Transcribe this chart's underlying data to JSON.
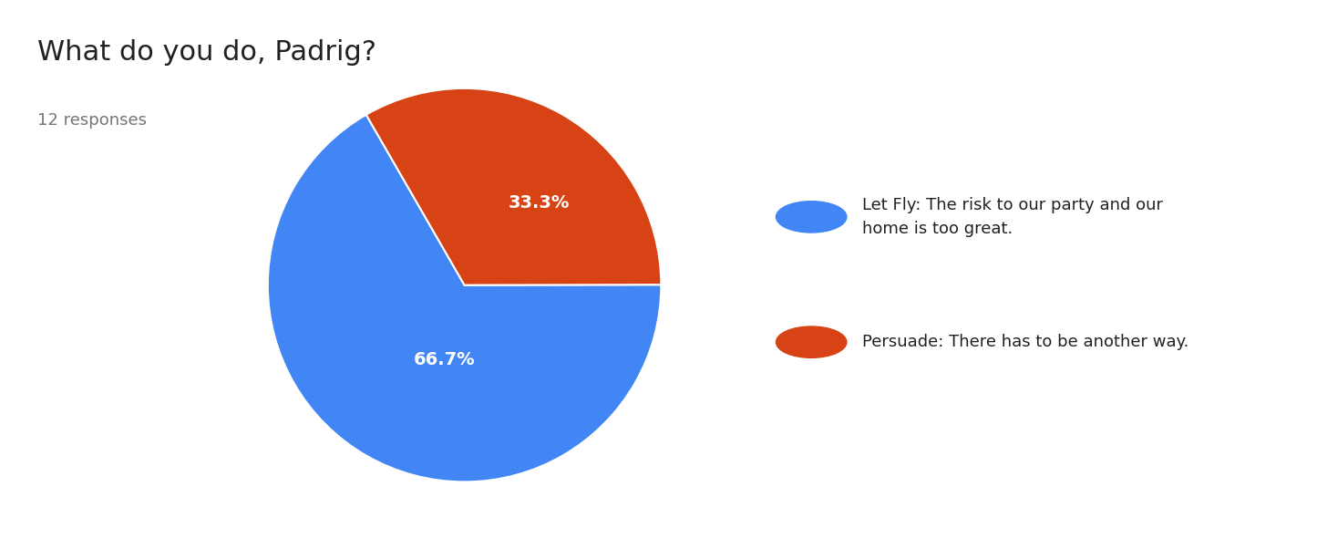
{
  "title": "What do you do, Padrig?",
  "subtitle": "12 responses",
  "slices": [
    66.7,
    33.3
  ],
  "labels": [
    "66.7%",
    "33.3%"
  ],
  "colors": [
    "#4285F4",
    "#D84315"
  ],
  "legend_labels": [
    "Let Fly: The risk to our party and our\nhome is too great.",
    "Persuade: There has to be another way."
  ],
  "legend_colors": [
    "#4285F4",
    "#D84315"
  ],
  "background_color": "#ffffff",
  "title_fontsize": 22,
  "subtitle_fontsize": 13,
  "label_fontsize": 14,
  "legend_fontsize": 13,
  "startangle": 120
}
